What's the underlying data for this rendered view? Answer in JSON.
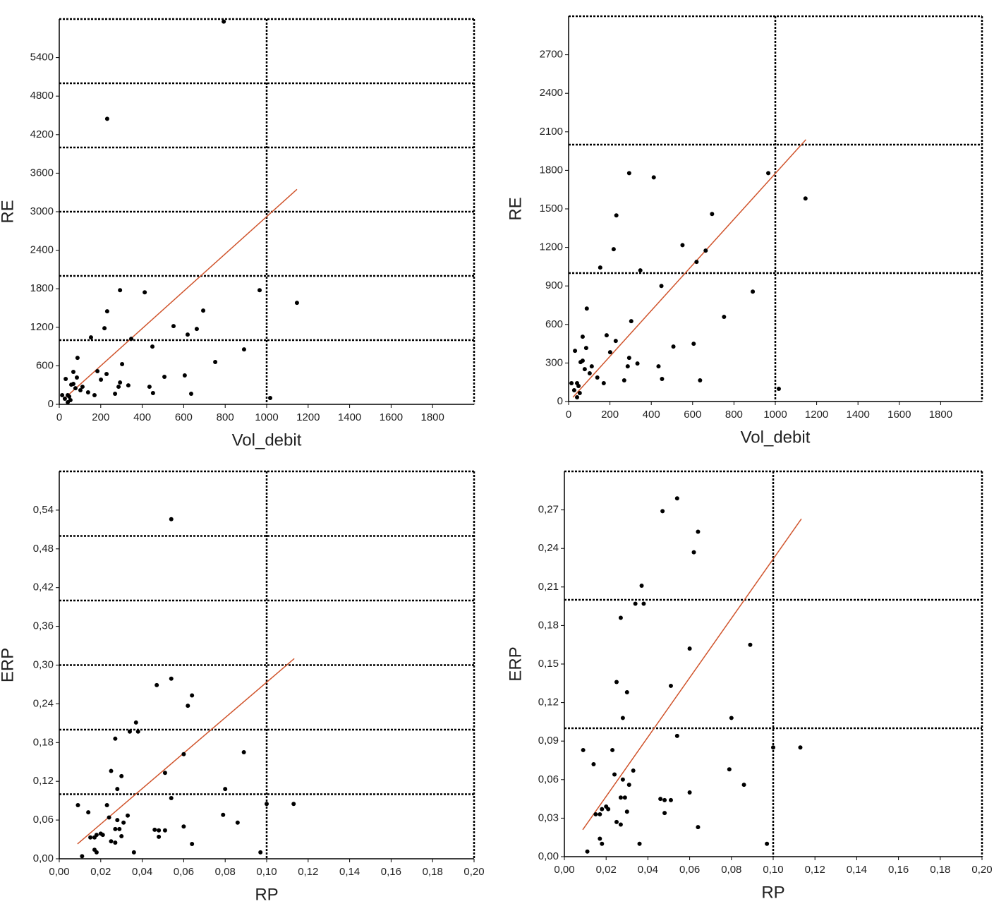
{
  "chart_data": [
    {
      "type": "scatter",
      "x_label": "Vol_debit",
      "y_label": "RE",
      "color": "#000000",
      "x": [
        793,
        231,
        293,
        412,
        231,
        153,
        218,
        551,
        694,
        663,
        619,
        347,
        449,
        303,
        184,
        228,
        201,
        88,
        68,
        31,
        68,
        85,
        293,
        333,
        435,
        452,
        507,
        605,
        636,
        752,
        891,
        966,
        1017,
        1146,
        286,
        269,
        102,
        112,
        139,
        170,
        14,
        27,
        48,
        54,
        41,
        58,
        78,
        41
      ],
      "y": [
        5960,
        4446,
        1778,
        1745,
        1449,
        1043,
        1186,
        1218,
        1460,
        1175,
        1087,
        1021,
        900,
        626,
        516,
        472,
        384,
        724,
        505,
        395,
        318,
        417,
        340,
        296,
        274,
        176,
        428,
        450,
        165,
        659,
        856,
        1778,
        99,
        1581,
        274,
        165,
        220,
        274,
        187,
        143,
        143,
        88,
        121,
        66,
        33,
        307,
        252,
        143
      ],
      "xlim": [
        0,
        2000
      ],
      "ylim": [
        0,
        6000
      ],
      "xticks": [
        0,
        200,
        400,
        600,
        800,
        1000,
        1200,
        1400,
        1600,
        1800
      ],
      "yticks": [
        0,
        600,
        1200,
        1800,
        2400,
        3000,
        3600,
        4200,
        4800,
        5400
      ],
      "hlines": [
        1000,
        2000,
        3000,
        4000,
        5000
      ],
      "vlines": [
        1000
      ],
      "trend": {
        "x": [
          20,
          1146
        ],
        "y": [
          77,
          3348
        ],
        "color": "#d0542c"
      }
    },
    {
      "type": "scatter",
      "x_label": "Vol_debit",
      "y_label": "RE",
      "color": "#000000",
      "x": [
        293,
        412,
        231,
        153,
        218,
        551,
        694,
        663,
        619,
        347,
        449,
        303,
        184,
        228,
        201,
        88,
        68,
        31,
        68,
        85,
        293,
        333,
        435,
        452,
        507,
        605,
        636,
        752,
        891,
        966,
        1017,
        1146,
        286,
        269,
        102,
        112,
        139,
        170,
        14,
        27,
        48,
        54,
        41,
        58,
        78,
        41
      ],
      "y": [
        1778,
        1745,
        1449,
        1043,
        1186,
        1218,
        1460,
        1175,
        1087,
        1021,
        900,
        626,
        516,
        472,
        384,
        724,
        505,
        395,
        318,
        417,
        340,
        296,
        274,
        176,
        428,
        450,
        165,
        659,
        856,
        1778,
        99,
        1581,
        274,
        165,
        220,
        274,
        187,
        143,
        143,
        88,
        121,
        66,
        33,
        307,
        252,
        143
      ],
      "xlim": [
        0,
        2000
      ],
      "ylim": [
        0,
        3000
      ],
      "xticks": [
        0,
        200,
        400,
        600,
        800,
        1000,
        1200,
        1400,
        1600,
        1800
      ],
      "yticks": [
        0,
        300,
        600,
        900,
        1200,
        1500,
        1800,
        2100,
        2400,
        2700
      ],
      "hlines": [
        1000,
        2000
      ],
      "vlines": [
        1000
      ],
      "trend": {
        "x": [
          21,
          1148
        ],
        "y": [
          33,
          2039
        ],
        "color": "#d0542c"
      }
    },
    {
      "type": "scatter",
      "x_label": "RP",
      "y_label": "ERP",
      "color": "#000000",
      "x": [
        0.054,
        0.047,
        0.054,
        0.064,
        0.062,
        0.037,
        0.034,
        0.038,
        0.027,
        0.06,
        0.089,
        0.051,
        0.025,
        0.03,
        0.028,
        0.08,
        0.054,
        0.023,
        0.009,
        0.014,
        0.033,
        0.024,
        0.028,
        0.031,
        0.079,
        0.086,
        0.1,
        0.113,
        0.06,
        0.027,
        0.029,
        0.048,
        0.046,
        0.051,
        0.048,
        0.03,
        0.018,
        0.02,
        0.021,
        0.017,
        0.015,
        0.025,
        0.027,
        0.064,
        0.017,
        0.018,
        0.036,
        0.097,
        0.011
      ],
      "y": [
        0.526,
        0.269,
        0.279,
        0.253,
        0.237,
        0.211,
        0.197,
        0.197,
        0.186,
        0.162,
        0.165,
        0.133,
        0.136,
        0.128,
        0.108,
        0.108,
        0.094,
        0.083,
        0.083,
        0.072,
        0.067,
        0.064,
        0.06,
        0.056,
        0.068,
        0.056,
        0.085,
        0.085,
        0.05,
        0.046,
        0.046,
        0.044,
        0.045,
        0.044,
        0.034,
        0.035,
        0.037,
        0.039,
        0.037,
        0.033,
        0.033,
        0.027,
        0.025,
        0.023,
        0.014,
        0.01,
        0.01,
        0.01,
        0.004
      ],
      "xlim": [
        0,
        0.2
      ],
      "ylim": [
        0,
        0.6
      ],
      "xticks": [
        {
          "value": 0,
          "label": "0,00"
        },
        {
          "value": 0.02,
          "label": "0,02"
        },
        {
          "value": 0.04,
          "label": "0,04"
        },
        {
          "value": 0.06,
          "label": "0,06"
        },
        {
          "value": 0.08,
          "label": "0,08"
        },
        {
          "value": 0.1,
          "label": "0,10"
        },
        {
          "value": 0.12,
          "label": "0,12"
        },
        {
          "value": 0.14,
          "label": "0,14"
        },
        {
          "value": 0.16,
          "label": "0,16"
        },
        {
          "value": 0.18,
          "label": "0,18"
        },
        {
          "value": 0.2,
          "label": "0,20"
        }
      ],
      "yticks": [
        {
          "value": 0,
          "label": "0,00"
        },
        {
          "value": 0.06,
          "label": "0,06"
        },
        {
          "value": 0.12,
          "label": "0,12"
        },
        {
          "value": 0.18,
          "label": "0,18"
        },
        {
          "value": 0.24,
          "label": "0,24"
        },
        {
          "value": 0.3,
          "label": "0,30"
        },
        {
          "value": 0.36,
          "label": "0,36"
        },
        {
          "value": 0.42,
          "label": "0,42"
        },
        {
          "value": 0.48,
          "label": "0,48"
        },
        {
          "value": 0.54,
          "label": "0,54"
        }
      ],
      "hlines": [
        0.1,
        0.2,
        0.3,
        0.4,
        0.5
      ],
      "vlines": [
        0.1
      ],
      "trend": {
        "x": [
          0.0088,
          0.1133
        ],
        "y": [
          0.023,
          0.31
        ],
        "color": "#d0542c"
      }
    },
    {
      "type": "scatter",
      "x_label": "RP",
      "y_label": "ERP",
      "color": "#000000",
      "x": [
        0.047,
        0.054,
        0.064,
        0.062,
        0.037,
        0.034,
        0.038,
        0.027,
        0.06,
        0.089,
        0.051,
        0.025,
        0.03,
        0.028,
        0.08,
        0.054,
        0.023,
        0.009,
        0.014,
        0.033,
        0.024,
        0.028,
        0.031,
        0.079,
        0.086,
        0.1,
        0.113,
        0.06,
        0.027,
        0.029,
        0.048,
        0.046,
        0.051,
        0.048,
        0.03,
        0.018,
        0.02,
        0.021,
        0.017,
        0.015,
        0.025,
        0.027,
        0.064,
        0.017,
        0.018,
        0.036,
        0.097,
        0.011
      ],
      "y": [
        0.269,
        0.279,
        0.253,
        0.237,
        0.211,
        0.197,
        0.197,
        0.186,
        0.162,
        0.165,
        0.133,
        0.136,
        0.128,
        0.108,
        0.108,
        0.094,
        0.083,
        0.083,
        0.072,
        0.067,
        0.064,
        0.06,
        0.056,
        0.068,
        0.056,
        0.085,
        0.085,
        0.05,
        0.046,
        0.046,
        0.044,
        0.045,
        0.044,
        0.034,
        0.035,
        0.037,
        0.039,
        0.037,
        0.033,
        0.033,
        0.027,
        0.025,
        0.023,
        0.014,
        0.01,
        0.01,
        0.01,
        0.004
      ],
      "xlim": [
        0,
        0.2
      ],
      "ylim": [
        0,
        0.3
      ],
      "xticks": [
        {
          "value": 0,
          "label": "0,00"
        },
        {
          "value": 0.02,
          "label": "0,02"
        },
        {
          "value": 0.04,
          "label": "0,04"
        },
        {
          "value": 0.06,
          "label": "0,06"
        },
        {
          "value": 0.08,
          "label": "0,08"
        },
        {
          "value": 0.1,
          "label": "0,10"
        },
        {
          "value": 0.12,
          "label": "0,12"
        },
        {
          "value": 0.14,
          "label": "0,14"
        },
        {
          "value": 0.16,
          "label": "0,16"
        },
        {
          "value": 0.18,
          "label": "0,18"
        },
        {
          "value": 0.2,
          "label": "0,20"
        }
      ],
      "yticks": [
        {
          "value": 0,
          "label": "0,00"
        },
        {
          "value": 0.03,
          "label": "0,03"
        },
        {
          "value": 0.06,
          "label": "0,06"
        },
        {
          "value": 0.09,
          "label": "0,09"
        },
        {
          "value": 0.12,
          "label": "0,12"
        },
        {
          "value": 0.15,
          "label": "0,15"
        },
        {
          "value": 0.18,
          "label": "0,18"
        },
        {
          "value": 0.21,
          "label": "0,21"
        },
        {
          "value": 0.24,
          "label": "0,24"
        },
        {
          "value": 0.27,
          "label": "0,27"
        }
      ],
      "hlines": [
        0.1,
        0.2
      ],
      "vlines": [
        0.1
      ],
      "trend": {
        "x": [
          0.0088,
          0.1135
        ],
        "y": [
          0.021,
          0.263
        ],
        "color": "#d0542c"
      }
    }
  ]
}
